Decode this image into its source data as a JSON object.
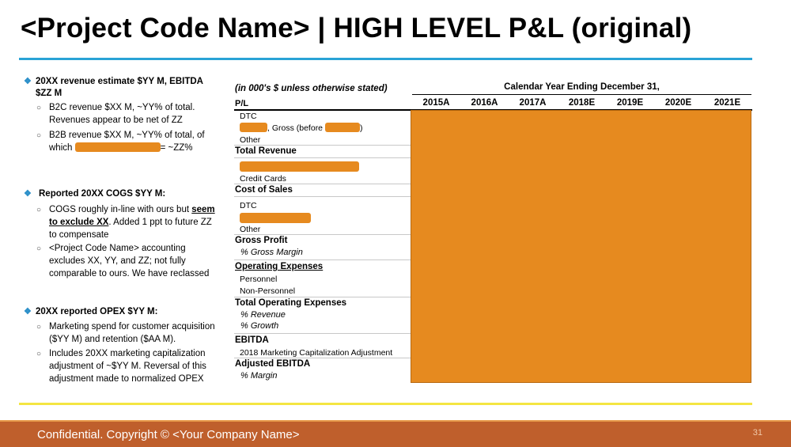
{
  "title": "<Project Code Name> | HIGH LEVEL P&L (original)",
  "notes": {
    "revenue": {
      "headline_1": "20XX revenue estimate $YY M, EBITDA",
      "headline_2": "$ZZ M",
      "b2c_1": "B2C revenue $XX M, ~YY% of total.",
      "b2c_2": "Revenues appear to be net of ZZ",
      "b2b_1": "B2B revenue $XX M, ~YY% of total, of",
      "b2b_2a": "which",
      "b2b_2b": "= ~ZZ%"
    },
    "cogs": {
      "headline": "Reported 20XX COGS $YY M:",
      "p1_l1a": "COGS roughly in-line with ours but ",
      "p1_l1b": "seem",
      "p1_l2a": "to exclude XX",
      "p1_l2b": ". Added 1 ppt to future ZZ",
      "p1_l3": "to compensate",
      "p2_l1": "<Project Code Name> accounting",
      "p2_l2": "excludes XX, YY, and ZZ; not fully",
      "p2_l3": "comparable to ours. We have reclassed"
    },
    "opex": {
      "headline": "20XX reported OPEX $YY M:",
      "p1_l1": "Marketing spend for customer acquisition",
      "p1_l2": "($YY M) and retention ($AA M).",
      "p2_l1": "Includes 20XX marketing capitalization",
      "p2_l2": "adjustment of ~$YY M. Reversal of this",
      "p2_l3": "adjustment made to normalized OPEX"
    }
  },
  "table": {
    "units_note": "(in 000's $ unless otherwise stated)",
    "calendar_header": "Calendar Year Ending December 31,",
    "pl_label": "P/L",
    "years": [
      "2015A",
      "2016A",
      "2017A",
      "2018E",
      "2019E",
      "2020E",
      "2021E"
    ],
    "rows": {
      "dtc": "DTC",
      "gross_before_a": ", Gross (before ",
      "gross_before_b": ")",
      "other": "Other",
      "total_revenue": "Total Revenue",
      "credit_cards": "Credit Cards",
      "cost_of_sales": "Cost of Sales",
      "dtc2": "DTC",
      "other2": "Other",
      "gross_profit": "Gross Profit",
      "gross_margin": "% Gross Margin",
      "operating_expenses": "Operating Expenses",
      "personnel": "Personnel",
      "non_personnel": "Non-Personnel",
      "total_opex": "Total Operating Expenses",
      "pct_revenue": "% Revenue",
      "pct_growth": "% Growth",
      "ebitda": "EBITDA",
      "mkt_cap_adj": "2018 Marketing Capitalization Adjustment",
      "adj_ebitda": "Adjusted EBITDA",
      "pct_margin": "% Margin"
    }
  },
  "footer": {
    "confidential": "Confidential. Copyright © <Your Company Name>",
    "page": "31"
  },
  "colors": {
    "accent_blue": "#29a3d6",
    "redaction_orange": "#e68a1f",
    "footer_bar": "#bf5f2c",
    "yellow_rule": "#f4e542"
  }
}
